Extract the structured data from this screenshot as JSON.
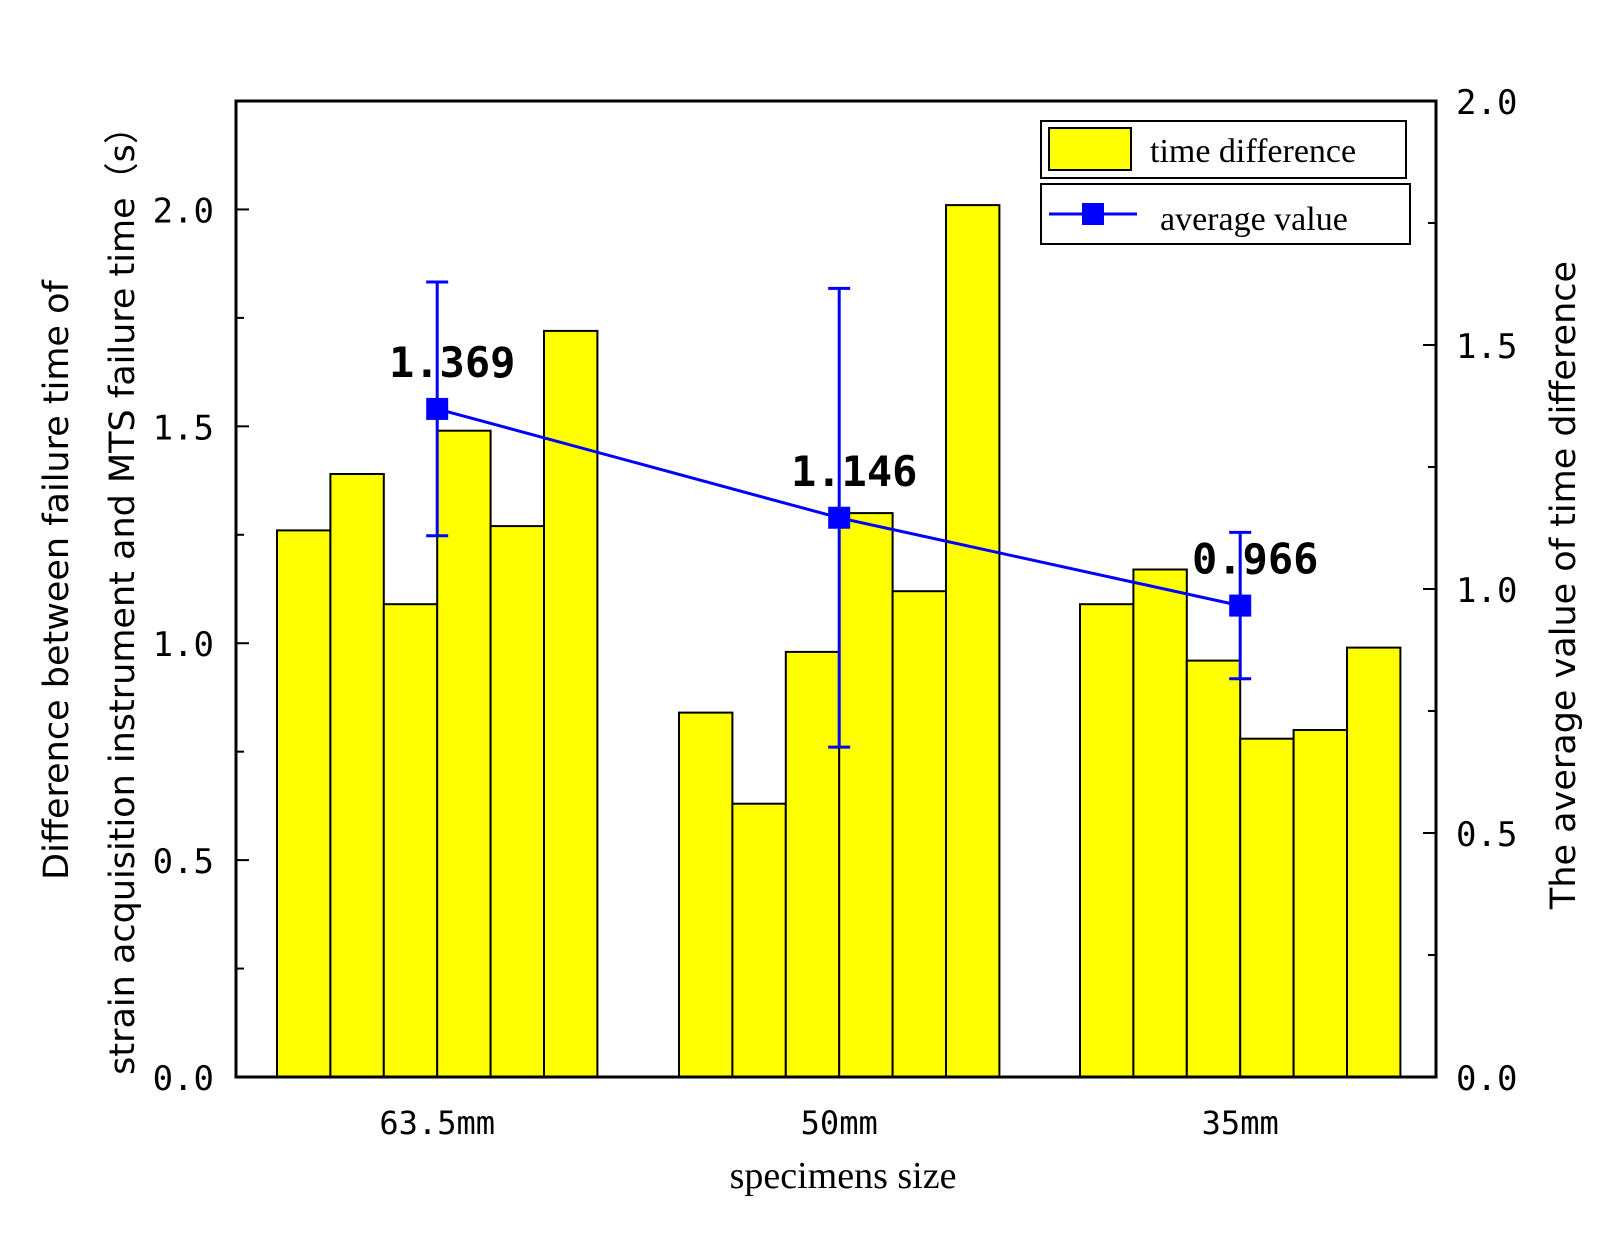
{
  "chart_data": {
    "type": "bar",
    "xlabel": "specimens size",
    "ylabel_left_line1": "Difference between failure time of",
    "ylabel_left_line2": "strain acquisition instrument and MTS failure time（s）",
    "ylabel_right": "The average value of time difference",
    "categories": [
      "63.5mm",
      "50mm",
      "35mm"
    ],
    "ylim_left": [
      0,
      2.25
    ],
    "yticks_left": [
      0,
      0.5,
      1.0,
      1.5,
      2.0
    ],
    "ytick_labels_left": [
      "0.0",
      "0.5",
      "1.0",
      "1.5",
      "2.0"
    ],
    "ylim_right": [
      0,
      2.0
    ],
    "yticks_right": [
      0,
      0.5,
      1.0,
      1.5,
      2.0
    ],
    "ytick_labels_right": [
      "0.0",
      "0.5",
      "1.0",
      "1.5",
      "2.0"
    ],
    "series": [
      {
        "name": "time difference",
        "axis": "left",
        "kind": "bar",
        "color": "#ffff00",
        "groups": [
          [
            1.26,
            1.39,
            1.09,
            1.49,
            1.27,
            1.72
          ],
          [
            0.84,
            0.63,
            0.98,
            1.3,
            1.12,
            2.01
          ],
          [
            1.09,
            1.17,
            0.96,
            0.78,
            0.8,
            0.99
          ]
        ]
      },
      {
        "name": "average value",
        "axis": "right",
        "kind": "line",
        "color": "#0000ff",
        "values": [
          1.369,
          1.146,
          0.966
        ],
        "errors": [
          0.26,
          0.47,
          0.15
        ],
        "labels": [
          "1.369",
          "1.146",
          "0.966"
        ]
      }
    ],
    "legend": {
      "position": "top-right",
      "entries": [
        "time difference",
        "average value"
      ]
    }
  }
}
